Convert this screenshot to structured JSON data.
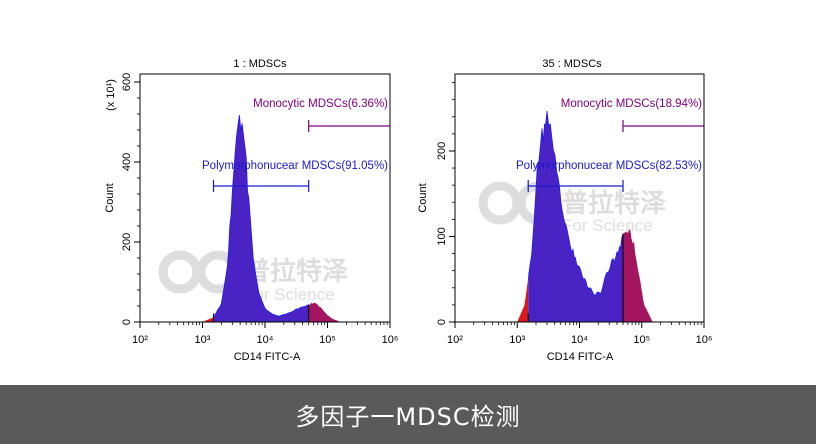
{
  "caption": {
    "text": "多因子一MDSC检测",
    "bar_color": "#5a5a5a"
  },
  "watermark": {
    "name": "普拉特泽",
    "tagline": "For Science"
  },
  "colors": {
    "fill_main": "#4a23c4",
    "stroke_main": "#1a1aff",
    "fill_gate": "#a3155f",
    "fill_low": "#d81b1b",
    "monocytic_label": "#800080",
    "polymorpho_label": "#1a1acc",
    "axis": "#000000"
  },
  "chart_data": [
    {
      "type": "histogram",
      "title": "1 : MDSCs",
      "xlabel": "CD14 FITC-A",
      "ylabel": "Count",
      "y_multiplier_label": "(x 10¹)",
      "xscale": "log",
      "xlim": [
        100,
        1000000
      ],
      "x_tick_labels": [
        "10²",
        "10³",
        "10⁴",
        "10⁵",
        "10⁶"
      ],
      "ylim": [
        0,
        620
      ],
      "y_ticks": [
        0,
        200,
        400,
        600
      ],
      "y_tick_labels": [
        "0",
        "200",
        "400",
        "600"
      ],
      "gates": [
        {
          "name": "Monocytic MDSCs(6.36%)",
          "x_range": [
            50000,
            1000000
          ],
          "color": "#800080"
        },
        {
          "name": "Polymorphonucear MDSCs(91.05%)",
          "x_range": [
            1500,
            50000
          ],
          "color": "#1a1acc"
        }
      ],
      "histogram": {
        "x": [
          1000,
          1500,
          2000,
          2500,
          3000,
          3500,
          3900,
          4300,
          4800,
          5500,
          6500,
          8000,
          10000,
          13000,
          17000,
          22000,
          30000,
          40000,
          50000,
          60000,
          70000,
          80000,
          95000,
          120000,
          160000
        ],
        "y": [
          0,
          12,
          45,
          140,
          320,
          460,
          515,
          500,
          440,
          300,
          160,
          70,
          35,
          20,
          15,
          20,
          30,
          38,
          43,
          48,
          42,
          35,
          20,
          8,
          0
        ]
      }
    },
    {
      "type": "histogram",
      "title": "35 : MDSCs",
      "xlabel": "CD14 FITC-A",
      "ylabel": "Count",
      "y_multiplier_label": "",
      "xscale": "log",
      "xlim": [
        100,
        1000000
      ],
      "x_tick_labels": [
        "10²",
        "10³",
        "10⁴",
        "10⁵",
        "10⁶"
      ],
      "ylim": [
        0,
        290
      ],
      "y_ticks": [
        0,
        100,
        200
      ],
      "y_tick_labels": [
        "0",
        "100",
        "200"
      ],
      "gates": [
        {
          "name": "Monocytic MDSCs(18.94%)",
          "x_range": [
            50000,
            1000000
          ],
          "color": "#800080"
        },
        {
          "name": "Polymorphonucear MDSCs(82.53%)",
          "x_range": [
            1500,
            50000
          ],
          "color": "#1a1acc"
        }
      ],
      "histogram": {
        "x": [
          1000,
          1300,
          1700,
          2100,
          2500,
          3000,
          3400,
          3800,
          4300,
          5000,
          6000,
          7500,
          9000,
          11000,
          14000,
          18000,
          22000,
          27000,
          33000,
          40000,
          48000,
          56000,
          65000,
          75000,
          90000,
          110000,
          150000
        ],
        "y": [
          0,
          20,
          80,
          180,
          215,
          240,
          225,
          210,
          180,
          140,
          110,
          85,
          70,
          55,
          40,
          32,
          35,
          55,
          70,
          78,
          95,
          108,
          105,
          90,
          55,
          20,
          0
        ]
      }
    }
  ]
}
